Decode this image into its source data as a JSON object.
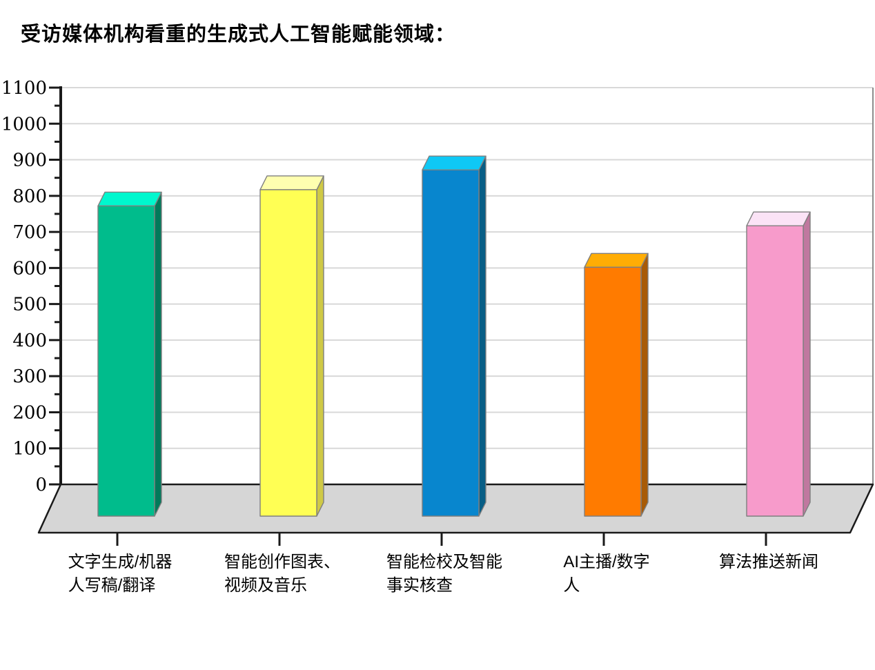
{
  "chart_data": {
    "type": "bar",
    "style": "3d-column",
    "title": "受访媒体机构看重的生成式人工智能赋能领域：",
    "categories": [
      "文字生成/机器人写稿/翻译",
      "智能创作图表、视频及音乐",
      "智能检校及智能事实核查",
      "AI主播/数字人",
      "算法推送新闻"
    ],
    "category_label_lines": [
      "文字生成/机器\n人写稿/翻译",
      "智能创作图表、\n视频及音乐",
      "智能检校及智能\n事实核查",
      "AI主播/数字\n人",
      "算法推送新闻"
    ],
    "values": [
      860,
      905,
      960,
      690,
      805
    ],
    "xlabel": "",
    "ylabel": "",
    "ylim": [
      0,
      1100
    ],
    "ytick_step": 100,
    "ytick_minor_step": 50,
    "ytick_labels": [
      "0",
      "100",
      "200",
      "300",
      "400",
      "500",
      "600",
      "700",
      "800",
      "900",
      "1000",
      "1100"
    ],
    "grid": true,
    "legend": false,
    "bar_colors": [
      {
        "name": "green",
        "front": "#00BC8C",
        "top": "#00F7CE",
        "side": "#00795A"
      },
      {
        "name": "yellow",
        "front": "#FFFF54",
        "top": "#FFFFB0",
        "side": "#CFC945"
      },
      {
        "name": "blue",
        "front": "#0886CE",
        "top": "#0FC8F5",
        "side": "#085E86"
      },
      {
        "name": "orange",
        "front": "#FF7B00",
        "top": "#FFAD05",
        "side": "#A85B07"
      },
      {
        "name": "pink",
        "front": "#F79BCB",
        "top": "#FBE3F6",
        "side": "#C0789F"
      }
    ],
    "wall_color": "#ffffff",
    "floor_color": "#D6D6D6",
    "gridline_color": "#D8D8D8",
    "axis_color": "#1a1a1a"
  }
}
